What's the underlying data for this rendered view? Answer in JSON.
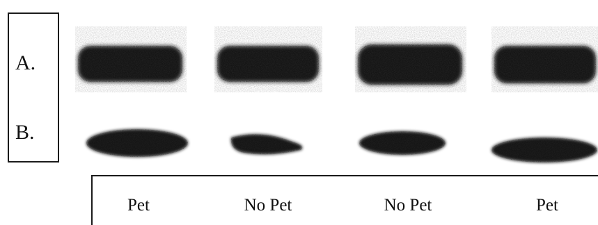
{
  "row_labels": [
    "A.",
    "B."
  ],
  "lane_labels": [
    "Pet",
    "No Pet",
    "No Pet",
    "Pet"
  ],
  "colors": {
    "band": "#141414",
    "background": "#ffffff",
    "frame": "#1a1a1a"
  }
}
